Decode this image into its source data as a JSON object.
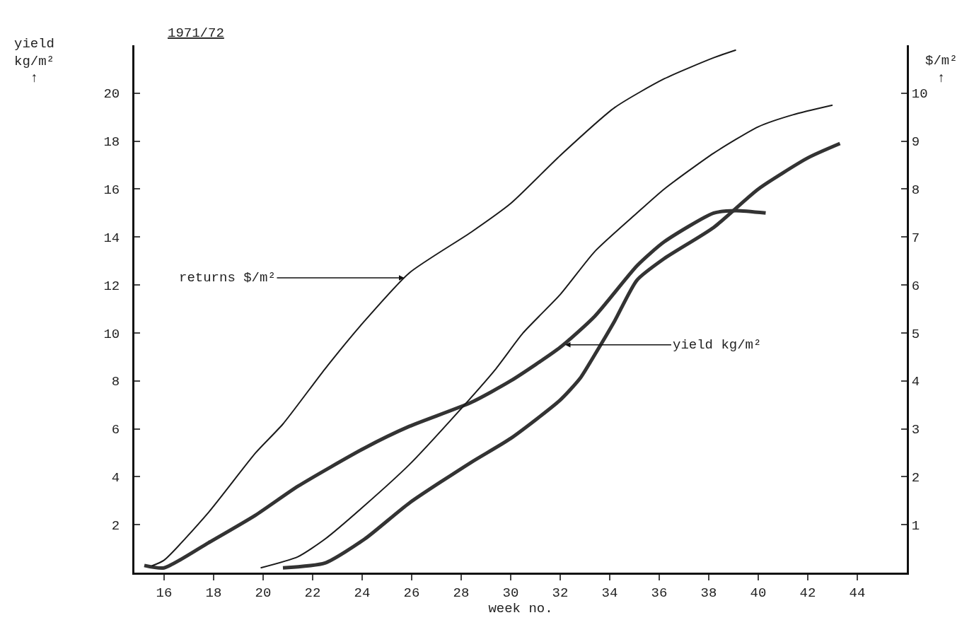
{
  "chart_data": {
    "type": "line",
    "title": "1971/72",
    "xlabel": "week no.",
    "ylabel": "yield\nkg/m²\n↑",
    "y2label": "$/m²\n↑",
    "series": [
      {
        "color": "#1a1a1a",
        "axis": "y2",
        "x": [
          15.5,
          16,
          17.8,
          19.7,
          20.8,
          22.5,
          24.1,
          25.9,
          28.4,
          30,
          32,
          34.2,
          36.2,
          38.2,
          39.1
        ],
        "values": [
          0.14,
          0.26,
          1.26,
          2.5,
          3.1,
          4.25,
          5.25,
          6.25,
          7.1,
          7.7,
          8.7,
          9.7,
          10.3,
          10.74,
          10.9
        ]
      },
      {
        "color": "#1a1a1a",
        "axis": "y2",
        "x": [
          19.9,
          21.4,
          22.5,
          24.1,
          25.9,
          27.7,
          29.4,
          30.5,
          32,
          33.4,
          35.1,
          36.2,
          38.2,
          40,
          41.4,
          43
        ],
        "values": [
          0.1,
          0.33,
          0.7,
          1.4,
          2.25,
          3.25,
          4.25,
          5.0,
          5.8,
          6.7,
          7.5,
          8.0,
          8.75,
          9.3,
          9.55,
          9.75
        ]
      },
      {
        "color": "#333333",
        "type": "line",
        "x": [
          15.2,
          16,
          17.8,
          19.7,
          21.4,
          24.1,
          25.9,
          28.4,
          30,
          32,
          33.4,
          35.1,
          36.2,
          38.2,
          39.1,
          40.3
        ],
        "values": [
          0.3,
          0.2,
          1.25,
          2.4,
          3.6,
          5.2,
          6.1,
          7.1,
          8.0,
          9.4,
          10.7,
          12.8,
          13.8,
          15.0,
          15.1,
          15.0
        ]
      },
      {
        "color": "#333333",
        "type": "line",
        "x": [
          20.8,
          22.5,
          24.1,
          25.9,
          28.4,
          30,
          32,
          32.8,
          33.4,
          34.2,
          35.1,
          36.2,
          38.2,
          40,
          42,
          43.3
        ],
        "values": [
          0.2,
          0.4,
          1.4,
          2.9,
          4.6,
          5.6,
          7.2,
          8.1,
          9.1,
          10.5,
          12.2,
          13.1,
          14.4,
          16.0,
          17.3,
          17.9
        ]
      }
    ],
    "annotations": [
      {
        "text": "returns $/m²",
        "x": 25.7,
        "y": 12.3
      },
      {
        "text": "yield kg/m²",
        "x": 32.2,
        "y": 9.5
      }
    ],
    "xlim": [
      14.8,
      46
    ],
    "xticks": [
      16,
      18,
      20,
      22,
      24,
      26,
      28,
      30,
      32,
      34,
      36,
      38,
      40,
      42,
      44
    ],
    "ylim": [
      0,
      22
    ],
    "yticks": [
      2,
      4,
      6,
      8,
      10,
      12,
      14,
      16,
      18,
      20
    ],
    "y2lim": [
      0,
      11
    ],
    "y2ticks": [
      1,
      2,
      3,
      4,
      5,
      6,
      7,
      8,
      9,
      10
    ]
  }
}
